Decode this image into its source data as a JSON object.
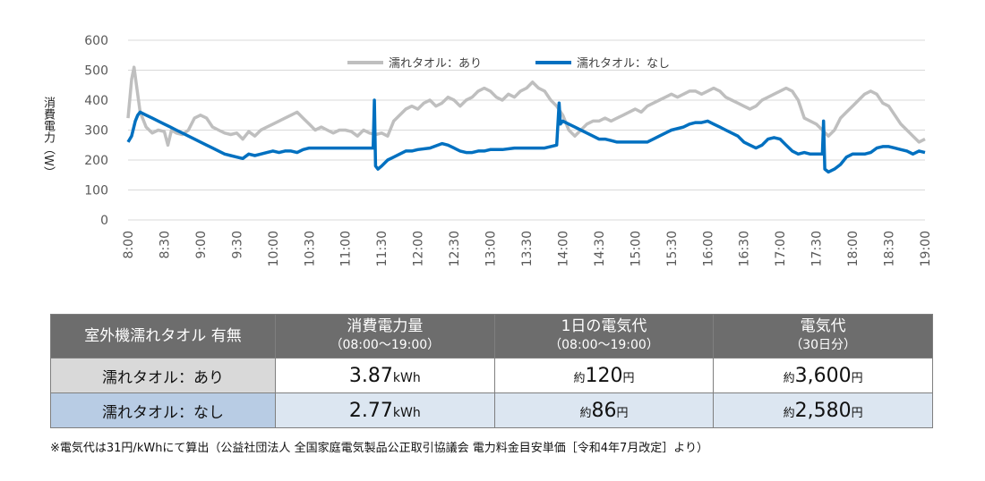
{
  "chart_data": {
    "type": "line",
    "ylabel": "消費電力（W）",
    "ylim": [
      0,
      600
    ],
    "yticks": [
      0,
      100,
      200,
      300,
      400,
      500,
      600
    ],
    "xlim": [
      "8:00",
      "19:00"
    ],
    "xticks": [
      "8:00",
      "8:30",
      "9:00",
      "9:30",
      "10:00",
      "10:30",
      "11:00",
      "11:30",
      "12:00",
      "12:30",
      "13:00",
      "13:30",
      "14:00",
      "14:30",
      "15:00",
      "15:30",
      "16:00",
      "16:30",
      "17:00",
      "17:30",
      "18:00",
      "18:30",
      "19:00"
    ],
    "legend_position": "top",
    "grid": "horizontal",
    "series": [
      {
        "name": "濡れタオル：あり",
        "color": "#bfbfbf",
        "points": [
          [
            "8:00",
            340
          ],
          [
            "8:03",
            470
          ],
          [
            "8:05",
            510
          ],
          [
            "8:07",
            450
          ],
          [
            "8:10",
            360
          ],
          [
            "8:15",
            310
          ],
          [
            "8:20",
            290
          ],
          [
            "8:25",
            300
          ],
          [
            "8:30",
            295
          ],
          [
            "8:33",
            250
          ],
          [
            "8:36",
            300
          ],
          [
            "8:40",
            290
          ],
          [
            "8:45",
            285
          ],
          [
            "8:50",
            300
          ],
          [
            "8:55",
            340
          ],
          [
            "9:00",
            350
          ],
          [
            "9:05",
            340
          ],
          [
            "9:10",
            310
          ],
          [
            "9:15",
            300
          ],
          [
            "9:20",
            290
          ],
          [
            "9:25",
            285
          ],
          [
            "9:30",
            290
          ],
          [
            "9:35",
            270
          ],
          [
            "9:40",
            295
          ],
          [
            "9:45",
            280
          ],
          [
            "9:50",
            300
          ],
          [
            "9:55",
            310
          ],
          [
            "10:00",
            320
          ],
          [
            "10:05",
            330
          ],
          [
            "10:10",
            340
          ],
          [
            "10:15",
            350
          ],
          [
            "10:20",
            360
          ],
          [
            "10:25",
            340
          ],
          [
            "10:30",
            320
          ],
          [
            "10:35",
            300
          ],
          [
            "10:40",
            310
          ],
          [
            "10:45",
            300
          ],
          [
            "10:50",
            290
          ],
          [
            "10:55",
            300
          ],
          [
            "11:00",
            300
          ],
          [
            "11:05",
            295
          ],
          [
            "11:10",
            280
          ],
          [
            "11:15",
            300
          ],
          [
            "11:20",
            290
          ],
          [
            "11:25",
            285
          ],
          [
            "11:30",
            290
          ],
          [
            "11:35",
            280
          ],
          [
            "11:40",
            330
          ],
          [
            "11:45",
            350
          ],
          [
            "11:50",
            370
          ],
          [
            "11:55",
            380
          ],
          [
            "12:00",
            370
          ],
          [
            "12:05",
            390
          ],
          [
            "12:10",
            400
          ],
          [
            "12:15",
            380
          ],
          [
            "12:20",
            390
          ],
          [
            "12:25",
            410
          ],
          [
            "12:30",
            400
          ],
          [
            "12:35",
            380
          ],
          [
            "12:40",
            400
          ],
          [
            "12:45",
            410
          ],
          [
            "12:50",
            430
          ],
          [
            "12:55",
            440
          ],
          [
            "13:00",
            430
          ],
          [
            "13:05",
            410
          ],
          [
            "13:10",
            400
          ],
          [
            "13:15",
            420
          ],
          [
            "13:20",
            410
          ],
          [
            "13:25",
            430
          ],
          [
            "13:30",
            440
          ],
          [
            "13:35",
            460
          ],
          [
            "13:40",
            440
          ],
          [
            "13:45",
            430
          ],
          [
            "13:50",
            400
          ],
          [
            "13:55",
            380
          ],
          [
            "14:00",
            350
          ],
          [
            "14:05",
            300
          ],
          [
            "14:10",
            280
          ],
          [
            "14:15",
            300
          ],
          [
            "14:20",
            320
          ],
          [
            "14:25",
            330
          ],
          [
            "14:30",
            330
          ],
          [
            "14:35",
            340
          ],
          [
            "14:40",
            330
          ],
          [
            "14:45",
            340
          ],
          [
            "14:50",
            350
          ],
          [
            "14:55",
            360
          ],
          [
            "15:00",
            370
          ],
          [
            "15:05",
            360
          ],
          [
            "15:10",
            380
          ],
          [
            "15:15",
            390
          ],
          [
            "15:20",
            400
          ],
          [
            "15:25",
            410
          ],
          [
            "15:30",
            420
          ],
          [
            "15:35",
            410
          ],
          [
            "15:40",
            420
          ],
          [
            "15:45",
            430
          ],
          [
            "15:50",
            430
          ],
          [
            "15:55",
            420
          ],
          [
            "16:00",
            430
          ],
          [
            "16:05",
            440
          ],
          [
            "16:10",
            430
          ],
          [
            "16:15",
            410
          ],
          [
            "16:20",
            400
          ],
          [
            "16:25",
            390
          ],
          [
            "16:30",
            380
          ],
          [
            "16:35",
            370
          ],
          [
            "16:40",
            380
          ],
          [
            "16:45",
            400
          ],
          [
            "16:50",
            410
          ],
          [
            "16:55",
            420
          ],
          [
            "17:00",
            430
          ],
          [
            "17:05",
            440
          ],
          [
            "17:10",
            430
          ],
          [
            "17:15",
            400
          ],
          [
            "17:20",
            340
          ],
          [
            "17:25",
            330
          ],
          [
            "17:30",
            320
          ],
          [
            "17:35",
            300
          ],
          [
            "17:40",
            280
          ],
          [
            "17:45",
            300
          ],
          [
            "17:50",
            340
          ],
          [
            "17:55",
            360
          ],
          [
            "18:00",
            380
          ],
          [
            "18:05",
            400
          ],
          [
            "18:10",
            420
          ],
          [
            "18:15",
            430
          ],
          [
            "18:20",
            420
          ],
          [
            "18:25",
            390
          ],
          [
            "18:30",
            380
          ],
          [
            "18:35",
            350
          ],
          [
            "18:40",
            320
          ],
          [
            "18:45",
            300
          ],
          [
            "18:50",
            280
          ],
          [
            "18:55",
            260
          ],
          [
            "19:00",
            270
          ]
        ]
      },
      {
        "name": "濡れタオル：なし",
        "color": "#0070c0",
        "points": [
          [
            "8:00",
            260
          ],
          [
            "8:03",
            280
          ],
          [
            "8:06",
            330
          ],
          [
            "8:08",
            350
          ],
          [
            "8:10",
            360
          ],
          [
            "8:15",
            350
          ],
          [
            "8:20",
            340
          ],
          [
            "8:25",
            330
          ],
          [
            "8:30",
            320
          ],
          [
            "8:35",
            310
          ],
          [
            "8:40",
            300
          ],
          [
            "8:45",
            290
          ],
          [
            "8:50",
            280
          ],
          [
            "8:55",
            270
          ],
          [
            "9:00",
            260
          ],
          [
            "9:05",
            250
          ],
          [
            "9:10",
            240
          ],
          [
            "9:15",
            230
          ],
          [
            "9:20",
            220
          ],
          [
            "9:25",
            215
          ],
          [
            "9:30",
            210
          ],
          [
            "9:35",
            205
          ],
          [
            "9:40",
            220
          ],
          [
            "9:45",
            215
          ],
          [
            "9:50",
            220
          ],
          [
            "9:55",
            225
          ],
          [
            "10:00",
            230
          ],
          [
            "10:05",
            225
          ],
          [
            "10:10",
            230
          ],
          [
            "10:15",
            230
          ],
          [
            "10:20",
            225
          ],
          [
            "10:25",
            235
          ],
          [
            "10:30",
            240
          ],
          [
            "10:40",
            240
          ],
          [
            "10:50",
            240
          ],
          [
            "11:00",
            240
          ],
          [
            "11:10",
            240
          ],
          [
            "11:20",
            240
          ],
          [
            "11:23",
            240
          ],
          [
            "11:24",
            400
          ],
          [
            "11:25",
            180
          ],
          [
            "11:27",
            170
          ],
          [
            "11:30",
            180
          ],
          [
            "11:35",
            200
          ],
          [
            "11:40",
            210
          ],
          [
            "11:45",
            220
          ],
          [
            "11:50",
            230
          ],
          [
            "11:55",
            230
          ],
          [
            "12:00",
            235
          ],
          [
            "12:10",
            240
          ],
          [
            "12:20",
            255
          ],
          [
            "12:25",
            250
          ],
          [
            "12:30",
            240
          ],
          [
            "12:35",
            230
          ],
          [
            "12:40",
            225
          ],
          [
            "12:45",
            225
          ],
          [
            "12:50",
            230
          ],
          [
            "12:55",
            230
          ],
          [
            "13:00",
            235
          ],
          [
            "13:10",
            235
          ],
          [
            "13:20",
            240
          ],
          [
            "13:30",
            240
          ],
          [
            "13:40",
            240
          ],
          [
            "13:45",
            240
          ],
          [
            "13:50",
            245
          ],
          [
            "13:55",
            250
          ],
          [
            "13:57",
            390
          ],
          [
            "13:58",
            320
          ],
          [
            "14:00",
            330
          ],
          [
            "14:05",
            320
          ],
          [
            "14:10",
            310
          ],
          [
            "14:15",
            300
          ],
          [
            "14:20",
            290
          ],
          [
            "14:25",
            280
          ],
          [
            "14:30",
            270
          ],
          [
            "14:35",
            270
          ],
          [
            "14:40",
            265
          ],
          [
            "14:45",
            260
          ],
          [
            "14:50",
            260
          ],
          [
            "15:00",
            260
          ],
          [
            "15:10",
            260
          ],
          [
            "15:15",
            270
          ],
          [
            "15:20",
            280
          ],
          [
            "15:25",
            290
          ],
          [
            "15:30",
            300
          ],
          [
            "15:40",
            310
          ],
          [
            "15:45",
            320
          ],
          [
            "15:50",
            325
          ],
          [
            "15:55",
            325
          ],
          [
            "16:00",
            330
          ],
          [
            "16:05",
            320
          ],
          [
            "16:10",
            310
          ],
          [
            "16:15",
            300
          ],
          [
            "16:20",
            290
          ],
          [
            "16:25",
            280
          ],
          [
            "16:30",
            260
          ],
          [
            "16:35",
            250
          ],
          [
            "16:40",
            240
          ],
          [
            "16:45",
            250
          ],
          [
            "16:50",
            270
          ],
          [
            "16:55",
            275
          ],
          [
            "17:00",
            270
          ],
          [
            "17:05",
            250
          ],
          [
            "17:10",
            230
          ],
          [
            "17:15",
            220
          ],
          [
            "17:20",
            225
          ],
          [
            "17:25",
            220
          ],
          [
            "17:30",
            220
          ],
          [
            "17:35",
            220
          ],
          [
            "17:36",
            330
          ],
          [
            "17:37",
            170
          ],
          [
            "17:40",
            160
          ],
          [
            "17:45",
            170
          ],
          [
            "17:50",
            185
          ],
          [
            "17:55",
            210
          ],
          [
            "18:00",
            220
          ],
          [
            "18:10",
            220
          ],
          [
            "18:15",
            225
          ],
          [
            "18:20",
            240
          ],
          [
            "18:25",
            245
          ],
          [
            "18:30",
            245
          ],
          [
            "18:35",
            240
          ],
          [
            "18:40",
            235
          ],
          [
            "18:45",
            230
          ],
          [
            "18:50",
            220
          ],
          [
            "18:55",
            230
          ],
          [
            "19:00",
            225
          ]
        ]
      }
    ]
  },
  "table": {
    "headers": [
      {
        "main": "室外機濡れタオル 有無",
        "sub": ""
      },
      {
        "main": "消費電力量",
        "sub": "（08:00～19:00）"
      },
      {
        "main": "1日の電気代",
        "sub": "（08:00～19:00）"
      },
      {
        "main": "電気代",
        "sub": "（30日分）"
      }
    ],
    "rows": [
      {
        "label": "濡れタオル：あり",
        "kwh": "3.87",
        "kwh_unit": "kWh",
        "day_prefix": "約",
        "day": "120",
        "day_unit": "円",
        "month_prefix": "約",
        "month": "3,600",
        "month_unit": "円"
      },
      {
        "label": "濡れタオル：なし",
        "kwh": "2.77",
        "kwh_unit": "kWh",
        "day_prefix": "約",
        "day": "86",
        "day_unit": "円",
        "month_prefix": "約",
        "month": "2,580",
        "month_unit": "円"
      }
    ]
  },
  "note": "※電気代は31円/kWhにて算出（公益社団法人 全国家庭電気製品公正取引協議会 電力料金目安単価［令和4年7月改定］より）"
}
